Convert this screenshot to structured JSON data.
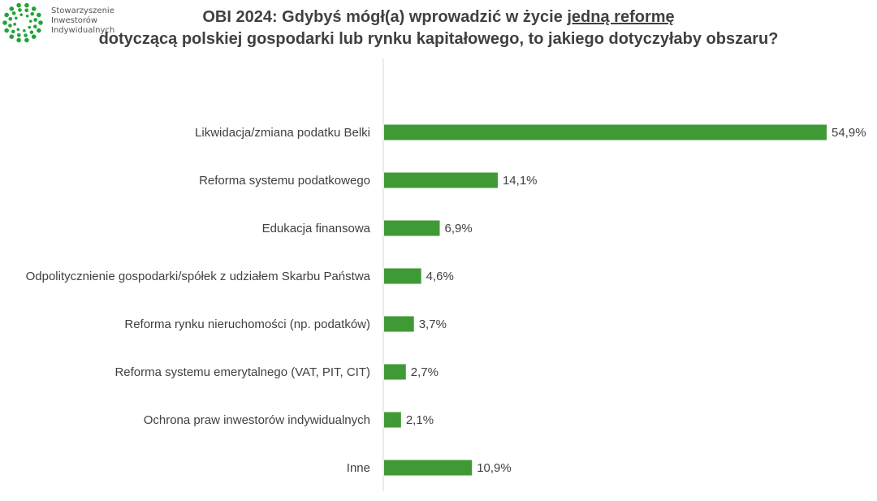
{
  "logo": {
    "lines": [
      "Stowarzyszenie",
      "Inwestorów",
      "Indywidualnych"
    ],
    "color": "#22a339"
  },
  "chart_data": {
    "type": "bar",
    "orientation": "horizontal",
    "title_line1_pre": "OBI 2024: Gdybyś mógł(a) wprowadzić w życie ",
    "title_line1_underlined": "jedną reformę",
    "title_line2": "dotyczącą polskiej gospodarki lub rynku kapitałowego, to jakiego dotyczyłaby obszaru?",
    "categories": [
      "Likwidacja/zmiana podatku Belki",
      "Reforma systemu podatkowego",
      "Edukacja finansowa",
      "Odpolitycznienie gospodarki/spółek z udziałem Skarbu Państwa",
      "Reforma rynku nieruchomości (np. podatków)",
      "Reforma systemu emerytalnego (VAT, PIT, CIT)",
      "Ochrona praw inwestorów indywidualnych",
      "Inne"
    ],
    "values": [
      54.9,
      14.1,
      6.9,
      4.6,
      3.7,
      2.7,
      2.1,
      10.9
    ],
    "data_labels": [
      "54,9%",
      "14,1%",
      "6,9%",
      "4,6%",
      "3,7%",
      "2,7%",
      "2,1%",
      "10,9%"
    ],
    "unit": "%",
    "bar_color": "#3f9a36",
    "grid": false,
    "legend": "none"
  }
}
